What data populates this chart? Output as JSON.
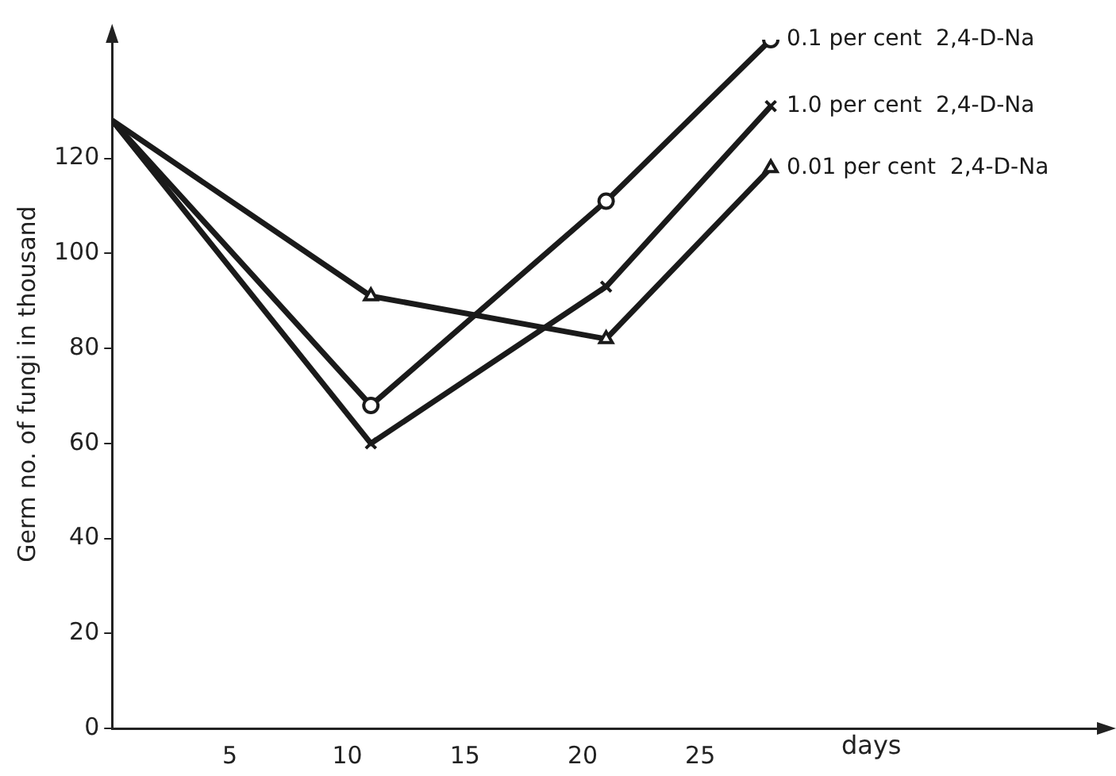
{
  "chart_data": {
    "type": "line",
    "ylabel": "Germ no. of fungi in thousand",
    "xlabel": "days",
    "x": [
      0,
      11,
      21,
      28
    ],
    "series": [
      {
        "name": "0.1 per cent  2,4-D-Na",
        "color": "#1a1a1a",
        "marker": "circle",
        "values": [
          128,
          68,
          111,
          145
        ]
      },
      {
        "name": "1.0 per cent  2,4-D-Na",
        "color": "#1a1a1a",
        "marker": "cross",
        "values": [
          128,
          60,
          93,
          131
        ]
      },
      {
        "name": "0.01 per cent  2,4-D-Na",
        "color": "#1a1a1a",
        "marker": "triangle",
        "values": [
          128,
          91,
          82,
          118
        ]
      }
    ],
    "xlim": [
      0,
      42
    ],
    "ylim": [
      0,
      145
    ],
    "xticks": [
      5,
      10,
      15,
      20,
      25
    ],
    "yticks": [
      0,
      20,
      40,
      60,
      80,
      100,
      120
    ],
    "grid": false,
    "legend": false,
    "line_style": "solid"
  }
}
